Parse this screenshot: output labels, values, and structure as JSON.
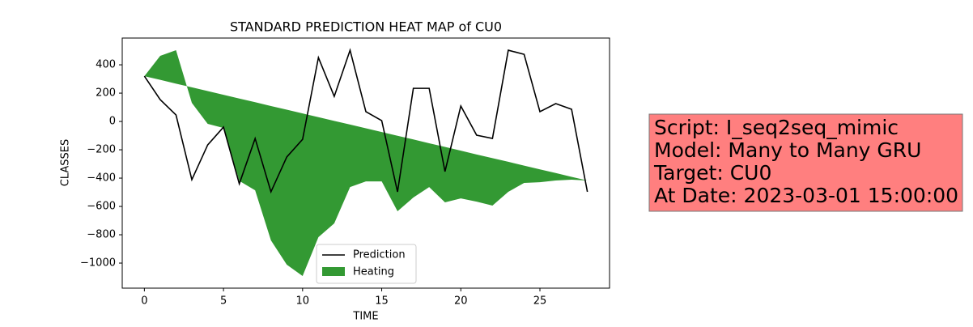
{
  "chart_data": {
    "type": "line",
    "title": "STANDARD PREDICTION HEAT MAP of CU0",
    "x_label": "TIME",
    "y_label": "CLASSES",
    "x": [
      0,
      1,
      2,
      3,
      4,
      5,
      6,
      7,
      8,
      9,
      10,
      11,
      12,
      13,
      14,
      15,
      16,
      17,
      18,
      19,
      20,
      21,
      22,
      23,
      24,
      25,
      26,
      27,
      28
    ],
    "series": [
      {
        "name": "Prediction",
        "color": "#000000",
        "values": [
          320,
          154,
          46,
          -411,
          -166,
          -40,
          -440,
          -120,
          -497,
          -251,
          -126,
          451,
          177,
          503,
          69,
          6,
          -497,
          234,
          234,
          -354,
          109,
          -97,
          -120,
          503,
          474,
          69,
          126,
          86,
          -497
        ]
      },
      {
        "name": "Heating",
        "color": "#339933",
        "values": [
          320,
          463,
          503,
          131,
          -17,
          -46,
          -420,
          -486,
          -840,
          -1011,
          -1091,
          -817,
          -720,
          -463,
          -423,
          -423,
          -634,
          -537,
          -463,
          -571,
          -543,
          -566,
          -594,
          -497,
          -434,
          -429,
          -417,
          -411,
          -417
        ],
        "base": [
          320,
          294,
          267,
          241,
          215,
          188,
          162,
          136,
          109,
          83,
          57,
          30,
          4,
          -22,
          -48,
          -75,
          -101,
          -127,
          -154,
          -180,
          -206,
          -233,
          -259,
          -285,
          -312,
          -338,
          -364,
          -391,
          -417
        ]
      }
    ],
    "xlim": [
      -1.4,
      29.4
    ],
    "ylim": [
      -1177,
      589
    ],
    "xticks": [
      0,
      5,
      10,
      15,
      20,
      25
    ],
    "yticks": [
      {
        "value": -1000,
        "label": "−1000"
      },
      {
        "value": -800,
        "label": "−800"
      },
      {
        "value": -600,
        "label": "−600"
      },
      {
        "value": -400,
        "label": "−400"
      },
      {
        "value": -200,
        "label": "−200"
      },
      0,
      200,
      400
    ],
    "legend": "lower center",
    "annotation": {
      "lines": [
        "Script: I_seq2seq_mimic",
        "Model: Many to Many GRU",
        "Target: CU0",
        "At Date: 2023-03-01 15:00:00"
      ],
      "color": "#ff7f7f"
    }
  }
}
